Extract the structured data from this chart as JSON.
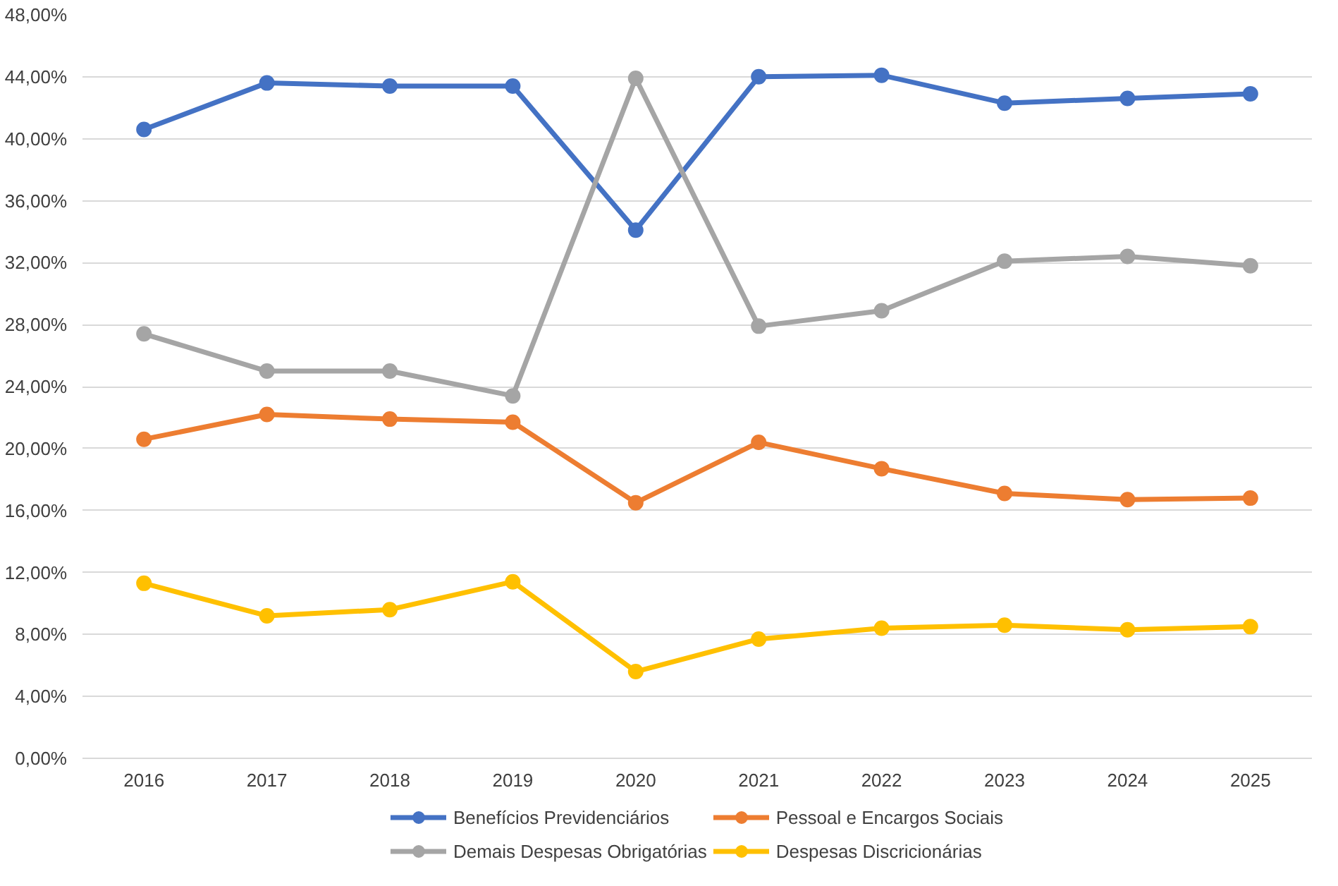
{
  "chart_data": {
    "type": "line",
    "categories": [
      "2016",
      "2017",
      "2018",
      "2019",
      "2020",
      "2021",
      "2022",
      "2023",
      "2024",
      "2025"
    ],
    "series": [
      {
        "name": "Benefícios Previdenciários",
        "color": "#4472c4",
        "values": [
          40.6,
          43.6,
          43.4,
          43.4,
          34.1,
          44.0,
          44.1,
          42.3,
          42.6,
          42.9
        ]
      },
      {
        "name": "Pessoal e Encargos Sociais",
        "color": "#ed7d31",
        "values": [
          20.6,
          22.2,
          21.9,
          21.7,
          16.5,
          20.4,
          18.7,
          17.1,
          16.7,
          16.8
        ]
      },
      {
        "name": "Demais Despesas Obrigatórias",
        "color": "#a5a5a5",
        "values": [
          27.4,
          25.0,
          25.0,
          23.4,
          43.9,
          27.9,
          28.9,
          32.1,
          32.4,
          31.8
        ]
      },
      {
        "name": "Despesas Discricionárias",
        "color": "#ffc000",
        "values": [
          11.3,
          9.2,
          9.6,
          11.4,
          5.6,
          7.7,
          8.4,
          8.6,
          8.3,
          8.5
        ]
      }
    ],
    "ylim": [
      0,
      48
    ],
    "yticks": [
      {
        "value": 0,
        "label": "0,00%"
      },
      {
        "value": 4,
        "label": "4,00%"
      },
      {
        "value": 8,
        "label": "8,00%"
      },
      {
        "value": 12,
        "label": "12,00%"
      },
      {
        "value": 16,
        "label": "16,00%"
      },
      {
        "value": 20,
        "label": "20,00%"
      },
      {
        "value": 24,
        "label": "24,00%"
      },
      {
        "value": 28,
        "label": "28,00%"
      },
      {
        "value": 32,
        "label": "32,00%"
      },
      {
        "value": 36,
        "label": "36,00%"
      },
      {
        "value": 40,
        "label": "40,00%"
      },
      {
        "value": 44,
        "label": "44,00%"
      },
      {
        "value": 48,
        "label": "48,00%"
      }
    ],
    "grid": "y",
    "legend": "bottom",
    "marker": "circle",
    "line_style": "solid"
  }
}
